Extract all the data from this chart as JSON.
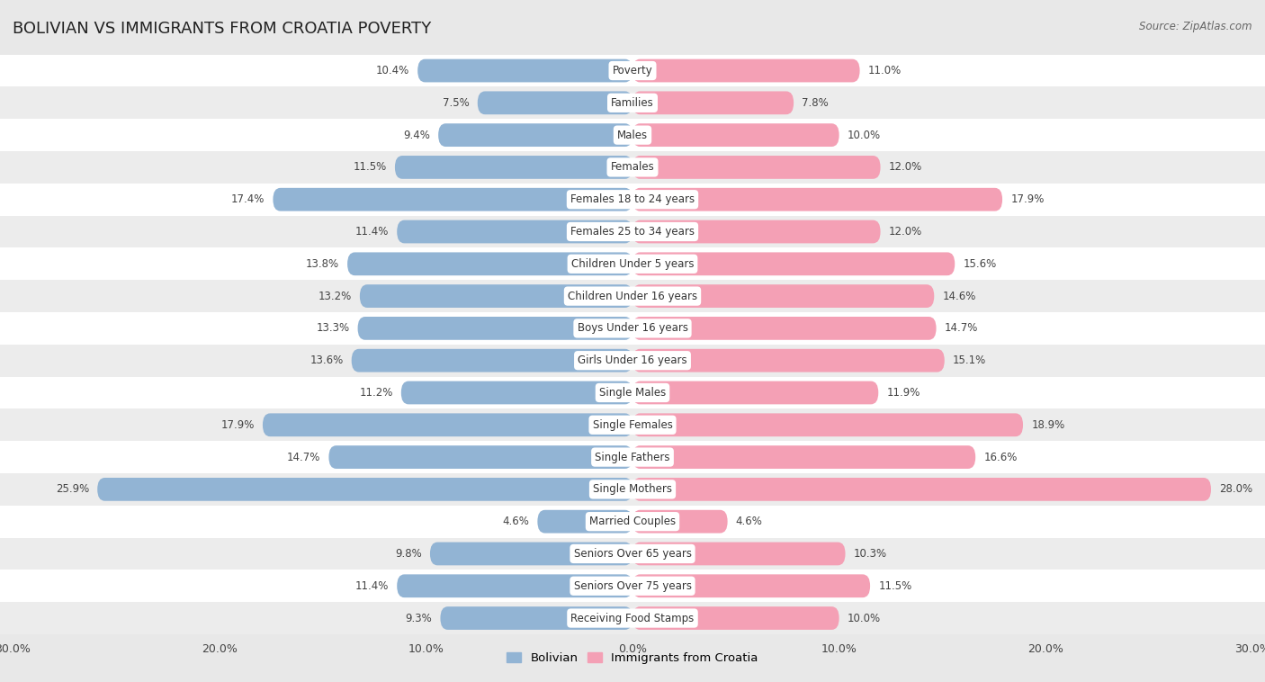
{
  "title": "BOLIVIAN VS IMMIGRANTS FROM CROATIA POVERTY",
  "source": "Source: ZipAtlas.com",
  "categories": [
    "Poverty",
    "Families",
    "Males",
    "Females",
    "Females 18 to 24 years",
    "Females 25 to 34 years",
    "Children Under 5 years",
    "Children Under 16 years",
    "Boys Under 16 years",
    "Girls Under 16 years",
    "Single Males",
    "Single Females",
    "Single Fathers",
    "Single Mothers",
    "Married Couples",
    "Seniors Over 65 years",
    "Seniors Over 75 years",
    "Receiving Food Stamps"
  ],
  "bolivian": [
    10.4,
    7.5,
    9.4,
    11.5,
    17.4,
    11.4,
    13.8,
    13.2,
    13.3,
    13.6,
    11.2,
    17.9,
    14.7,
    25.9,
    4.6,
    9.8,
    11.4,
    9.3
  ],
  "croatia": [
    11.0,
    7.8,
    10.0,
    12.0,
    17.9,
    12.0,
    15.6,
    14.6,
    14.7,
    15.1,
    11.9,
    18.9,
    16.6,
    28.0,
    4.6,
    10.3,
    11.5,
    10.0
  ],
  "bolivian_color": "#92b4d4",
  "croatia_color": "#f4a0b5",
  "row_color_even": "#e8e8e8",
  "row_color_odd": "#f5f5f5",
  "background_color": "#e8e8e8",
  "axis_limit": 30.0,
  "legend_label_bolivian": "Bolivian",
  "legend_label_croatia": "Immigrants from Croatia",
  "bar_height": 0.72,
  "title_fontsize": 13,
  "label_fontsize": 8.5,
  "value_fontsize": 8.5,
  "axis_tick_fontsize": 9
}
